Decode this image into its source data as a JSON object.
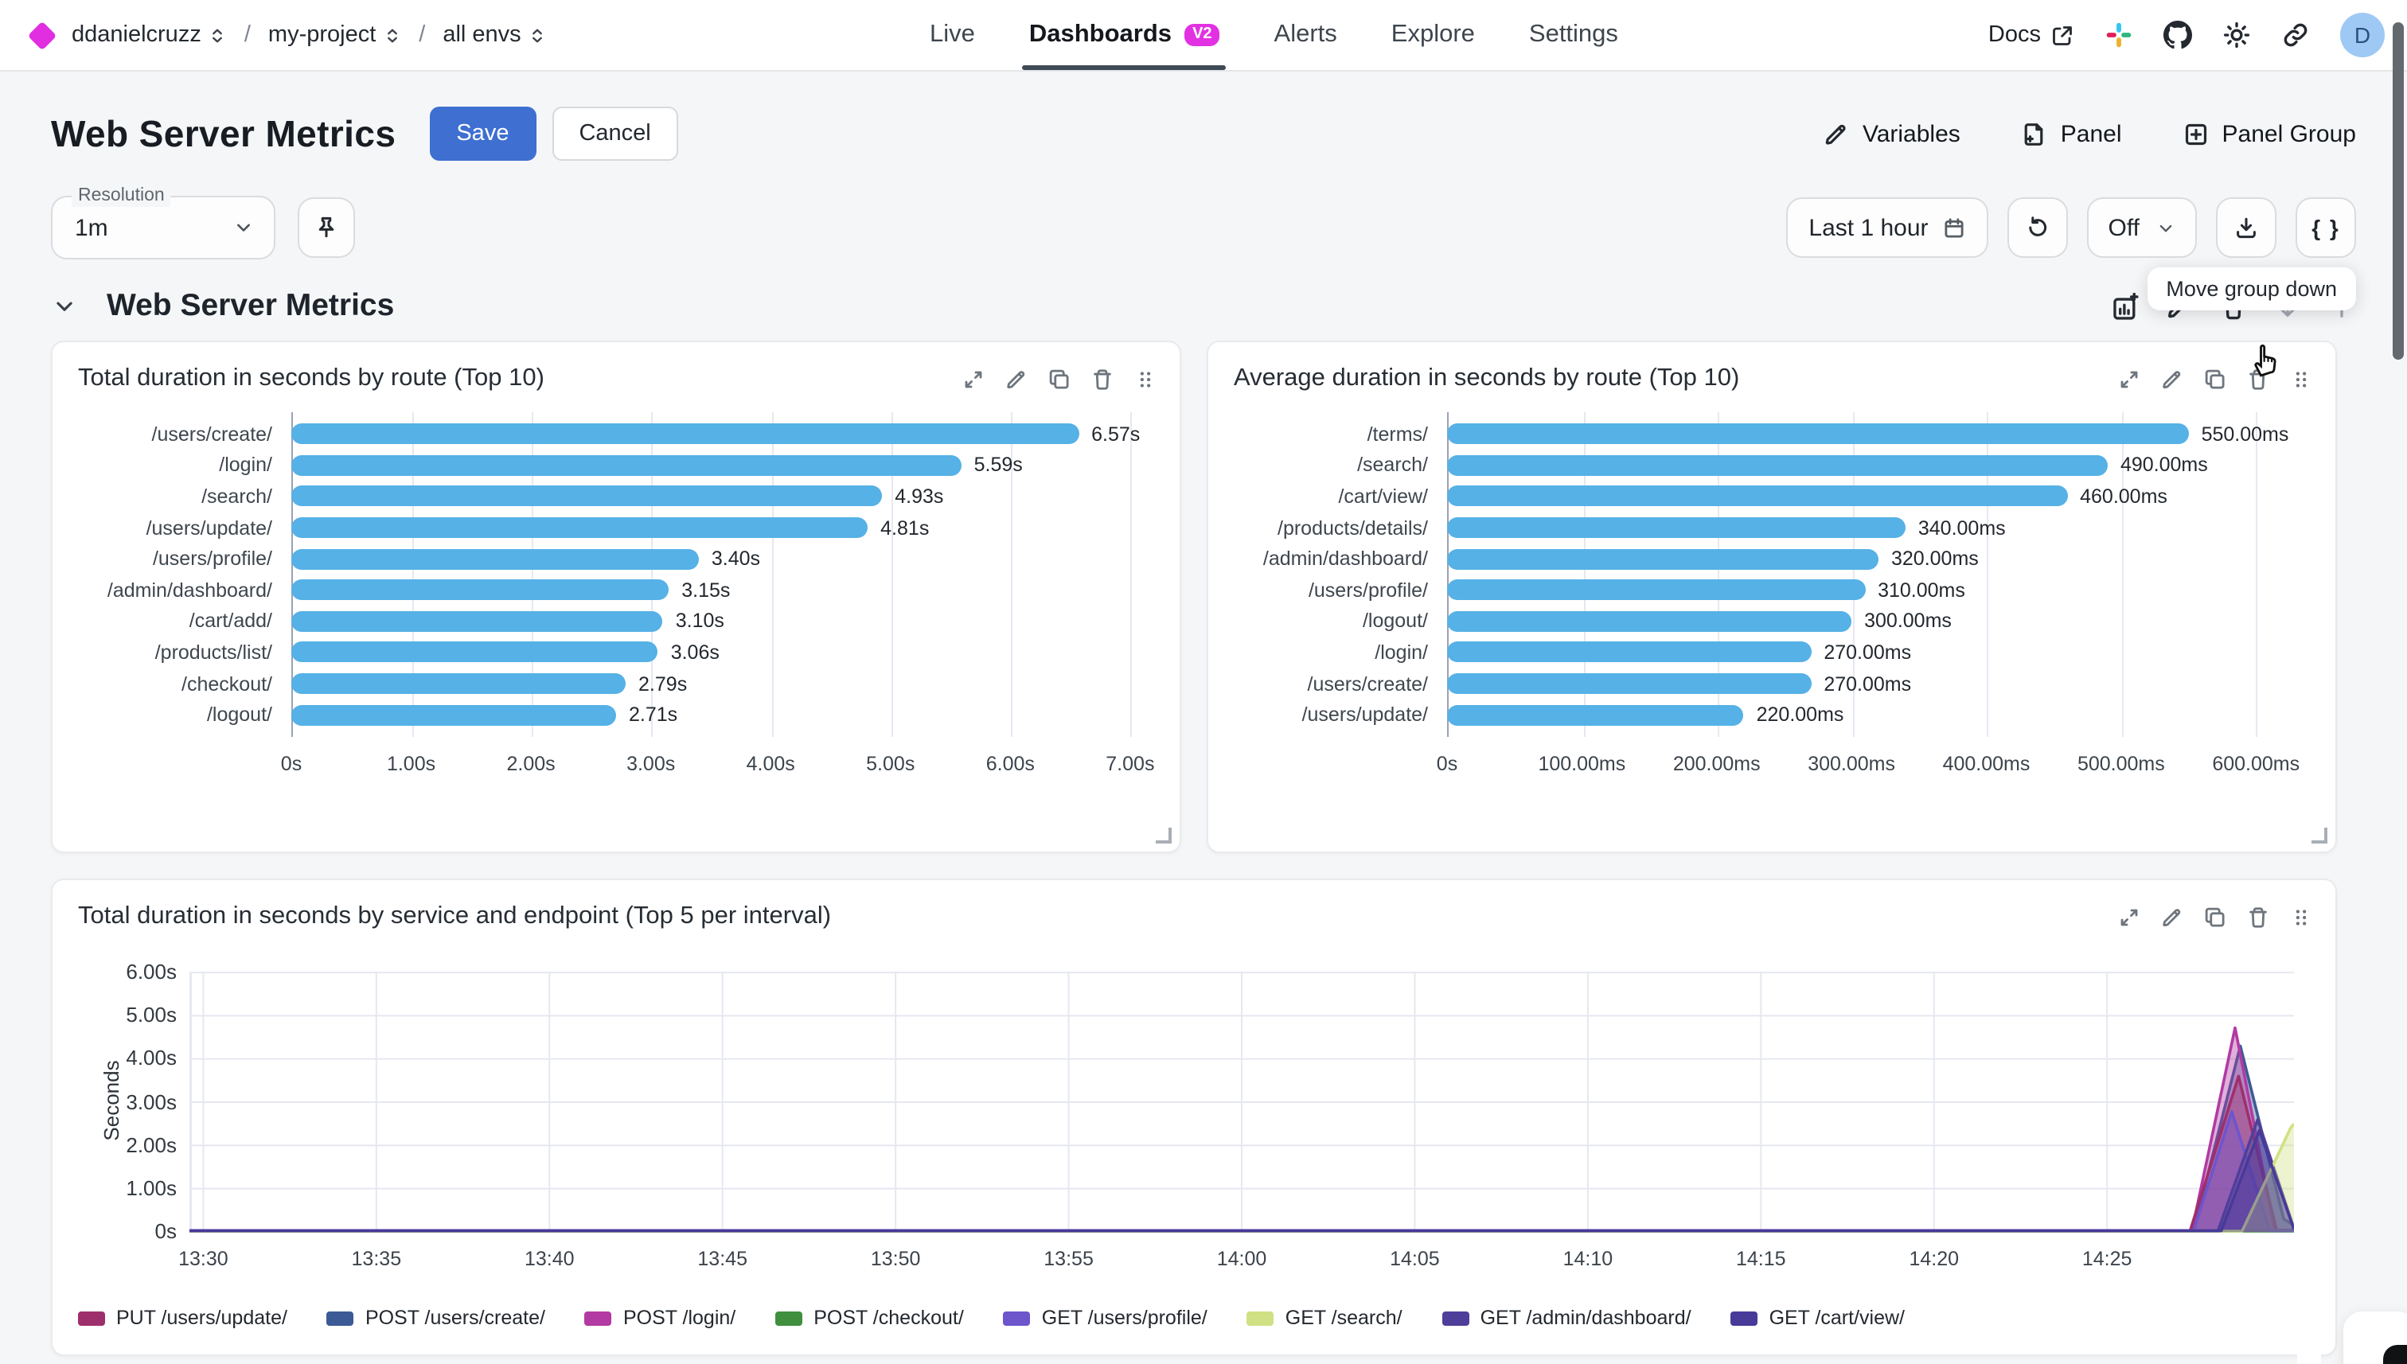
{
  "colors": {
    "accent": "#3e6fd1",
    "brand_magenta": "#e02ee0",
    "bar": "#55b1e6",
    "tab_underline": "#3f4a56",
    "grid": "#e6e8f1",
    "axis": "#99a1b4"
  },
  "topnav": {
    "breadcrumb": [
      {
        "label": "ddanielcruzz"
      },
      {
        "label": "my-project"
      },
      {
        "label": "all envs"
      }
    ],
    "separator": "/",
    "tabs": [
      {
        "label": "Live",
        "active": false
      },
      {
        "label": "Dashboards",
        "active": true,
        "badge": "V2"
      },
      {
        "label": "Alerts",
        "active": false
      },
      {
        "label": "Explore",
        "active": false
      },
      {
        "label": "Settings",
        "active": false
      }
    ],
    "docs_label": "Docs",
    "icon_buttons": [
      {
        "name": "slack-icon",
        "icon": "slack"
      },
      {
        "name": "github-icon",
        "icon": "github"
      },
      {
        "name": "theme-light-icon",
        "icon": "sun"
      },
      {
        "name": "copy-link-icon",
        "icon": "link"
      }
    ],
    "avatar": "D"
  },
  "header": {
    "title": "Web Server Metrics",
    "save": "Save",
    "cancel": "Cancel",
    "actions": [
      {
        "label": "Variables",
        "icon": "pencil"
      },
      {
        "label": "Panel",
        "icon": "file-plus"
      },
      {
        "label": "Panel Group",
        "icon": "plus-square"
      }
    ]
  },
  "toolbar": {
    "resolution_label": "Resolution",
    "resolution_value": "1m",
    "time_range": "Last 1 hour",
    "auto_refresh": "Off",
    "braces": "{ }"
  },
  "tooltip": {
    "text": "Move group down"
  },
  "group": {
    "title": "Web Server Metrics",
    "actions": [
      {
        "name": "add-panel-to-group-button",
        "icon": "add-chart",
        "muted": false
      },
      {
        "name": "edit-group-button",
        "icon": "pencil",
        "muted": false
      },
      {
        "name": "delete-group-button",
        "icon": "trash",
        "muted": false
      },
      {
        "name": "move-group-down-button",
        "icon": "arrow-down",
        "muted": true
      },
      {
        "name": "move-group-up-button",
        "icon": "arrow-up",
        "muted": true
      }
    ]
  },
  "panel_action_icons": [
    "expand",
    "pencil",
    "copy",
    "trash",
    "drag"
  ],
  "chart_data": [
    {
      "type": "bar",
      "title": "Total duration in seconds by route (Top 10)",
      "orientation": "horizontal",
      "categories": [
        "/users/create/",
        "/login/",
        "/search/",
        "/users/update/",
        "/users/profile/",
        "/admin/dashboard/",
        "/cart/add/",
        "/products/list/",
        "/checkout/",
        "/logout/"
      ],
      "values": [
        6.57,
        5.59,
        4.93,
        4.81,
        3.4,
        3.15,
        3.1,
        3.06,
        2.79,
        2.71
      ],
      "value_labels": [
        "6.57s",
        "5.59s",
        "4.93s",
        "4.81s",
        "3.40s",
        "3.15s",
        "3.10s",
        "3.06s",
        "2.79s",
        "2.71s"
      ],
      "ticks": [
        [
          "0s",
          0
        ],
        [
          "1.00s",
          1
        ],
        [
          "2.00s",
          2
        ],
        [
          "3.00s",
          3
        ],
        [
          "4.00s",
          4
        ],
        [
          "5.00s",
          5
        ],
        [
          "6.00s",
          6
        ],
        [
          "7.00s",
          7
        ]
      ],
      "track_max": 7.2,
      "xlim": [
        0,
        7.2
      ],
      "bar_color": "#55b1e6"
    },
    {
      "type": "bar",
      "title": "Average duration in seconds by route (Top 10)",
      "orientation": "horizontal",
      "categories": [
        "/terms/",
        "/search/",
        "/cart/view/",
        "/products/details/",
        "/admin/dashboard/",
        "/users/profile/",
        "/logout/",
        "/login/",
        "/users/create/",
        "/users/update/"
      ],
      "values": [
        550,
        490,
        460,
        340,
        320,
        310,
        300,
        270,
        270,
        220
      ],
      "value_labels": [
        "550.00ms",
        "490.00ms",
        "460.00ms",
        "340.00ms",
        "320.00ms",
        "310.00ms",
        "300.00ms",
        "270.00ms",
        "270.00ms",
        "220.00ms"
      ],
      "ticks": [
        [
          "0s",
          0
        ],
        [
          "100.00ms",
          100
        ],
        [
          "200.00ms",
          200
        ],
        [
          "300.00ms",
          300
        ],
        [
          "400.00ms",
          400
        ],
        [
          "500.00ms",
          500
        ],
        [
          "600.00ms",
          600
        ]
      ],
      "track_max": 640,
      "xlim": [
        0,
        640
      ],
      "bar_color": "#55b1e6"
    },
    {
      "type": "area",
      "title": "Total duration in seconds by service and endpoint (Top 5 per interval)",
      "ylabel": "Seconds",
      "yticks": [
        [
          "6.00s",
          6
        ],
        [
          "5.00s",
          5
        ],
        [
          "4.00s",
          4
        ],
        [
          "3.00s",
          3
        ],
        [
          "2.00s",
          2
        ],
        [
          "1.00s",
          1
        ],
        [
          "0s",
          0
        ]
      ],
      "xticks": [
        [
          "13:30",
          0
        ],
        [
          "13:35",
          5
        ],
        [
          "13:40",
          10
        ],
        [
          "13:45",
          15
        ],
        [
          "13:50",
          20
        ],
        [
          "13:55",
          25
        ],
        [
          "14:00",
          30
        ],
        [
          "14:05",
          35
        ],
        [
          "14:10",
          40
        ],
        [
          "14:15",
          45
        ],
        [
          "14:20",
          50
        ],
        [
          "14:25",
          55
        ]
      ],
      "x_domain_minutes": [
        -0.4,
        60.4
      ],
      "ylim": [
        0,
        6
      ],
      "grid": true,
      "legend_position": "bottom",
      "series": [
        {
          "name": "PUT /users/update/",
          "color": "#9e2f6d",
          "points": [
            [
              -0.4,
              0.03
            ],
            [
              57.4,
              0.03
            ],
            [
              58.8,
              3.6
            ],
            [
              59.9,
              0.04
            ],
            [
              60.4,
              0.04
            ]
          ]
        },
        {
          "name": "POST /users/create/",
          "color": "#3c5a96",
          "points": [
            [
              -0.4,
              0.03
            ],
            [
              57.5,
              0.03
            ],
            [
              58.85,
              4.3
            ],
            [
              60.1,
              0.3
            ],
            [
              60.4,
              0.15
            ]
          ]
        },
        {
          "name": "POST /login/",
          "color": "#b23aa2",
          "points": [
            [
              -0.4,
              0.03
            ],
            [
              57.45,
              0.03
            ],
            [
              58.7,
              4.72
            ],
            [
              59.85,
              0.04
            ],
            [
              60.4,
              0.04
            ]
          ]
        },
        {
          "name": "POST /checkout/",
          "color": "#3f8f3f",
          "points": [
            [
              -0.4,
              0.02
            ],
            [
              60.4,
              0.02
            ]
          ]
        },
        {
          "name": "GET /users/profile/",
          "color": "#6d55cc",
          "points": [
            [
              -0.4,
              0.03
            ],
            [
              57.5,
              0.03
            ],
            [
              58.6,
              2.78
            ],
            [
              59.7,
              0.03
            ],
            [
              60.4,
              0.03
            ]
          ]
        },
        {
          "name": "GET /search/",
          "color": "#cfe184",
          "points": [
            [
              -0.4,
              0.02
            ],
            [
              58.9,
              0.02
            ],
            [
              60.3,
              2.4
            ],
            [
              60.4,
              2.5
            ]
          ]
        },
        {
          "name": "GET /admin/dashboard/",
          "color": "#4f3f9b",
          "points": [
            [
              -0.4,
              0.02
            ],
            [
              58.2,
              0.02
            ],
            [
              59.35,
              2.6
            ],
            [
              60.4,
              0.08
            ]
          ]
        },
        {
          "name": "GET /cart/view/",
          "color": "#473a99",
          "points": [
            [
              -0.4,
              0.025
            ],
            [
              58.3,
              0.025
            ],
            [
              59.4,
              2.35
            ],
            [
              60.4,
              0.06
            ]
          ]
        }
      ],
      "draw_order": [
        3,
        1,
        2,
        0,
        4,
        6,
        5,
        7
      ]
    }
  ]
}
